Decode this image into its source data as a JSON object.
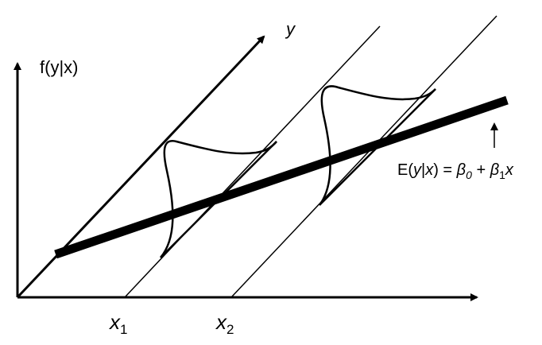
{
  "labels": {
    "y_axis": "y",
    "vertical_axis": "f(y|x)",
    "x1_main": "x",
    "x1_sub": "1",
    "x2_main": "x",
    "x2_sub": "2"
  },
  "equation": {
    "prefix": "E(",
    "y": "y",
    "bar": "|",
    "x": "x",
    "middle": ") = ",
    "beta0": "β",
    "beta0_sub": "0",
    "plus": " + ",
    "beta1": "β",
    "beta1_sub": "1",
    "x_end": "x"
  },
  "colors": {
    "ink": "#000000",
    "background": "#ffffff"
  }
}
